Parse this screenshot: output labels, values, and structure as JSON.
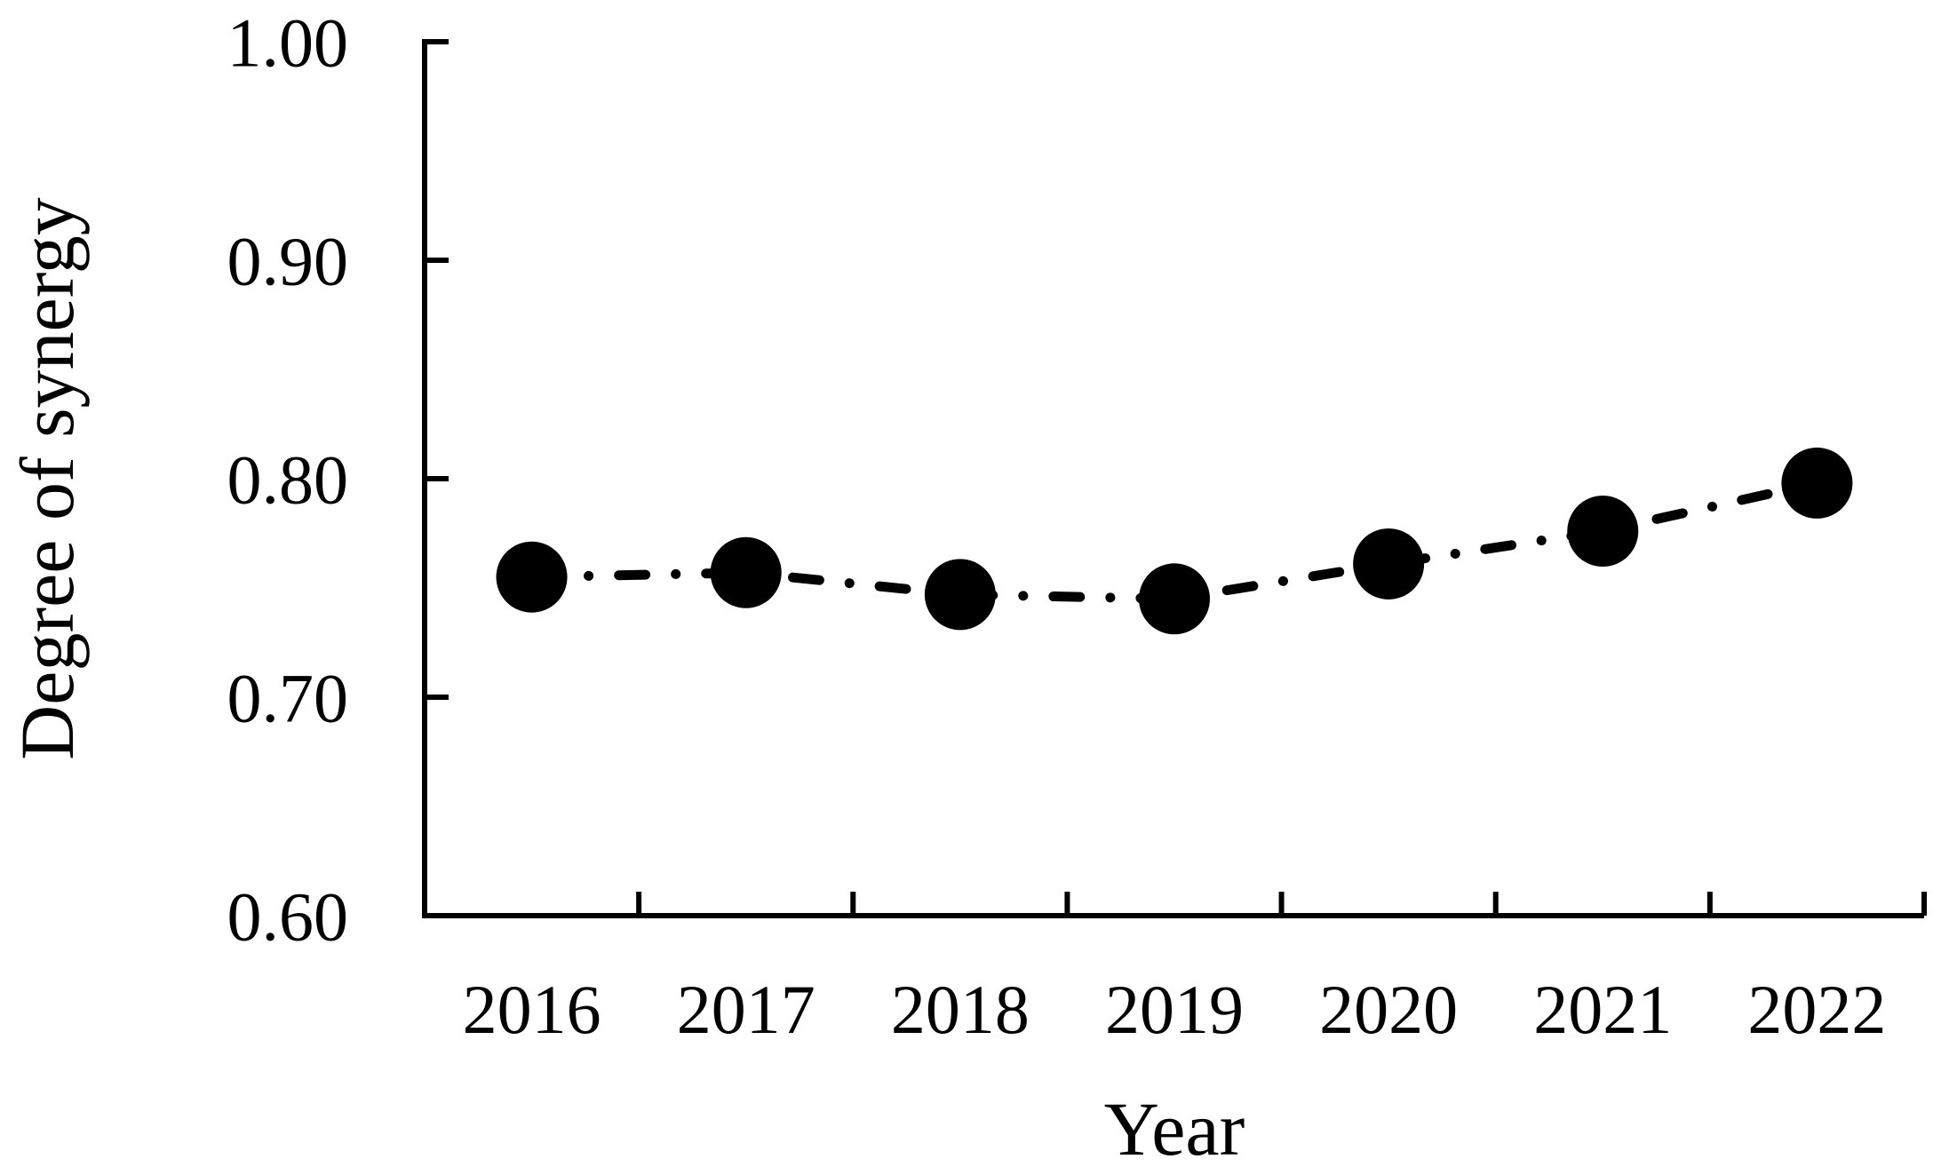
{
  "page": {
    "background_color": "#ffffff",
    "ink_color": "#000000"
  },
  "chart_data": {
    "type": "line",
    "title": "",
    "xlabel": "Year",
    "ylabel": "Degree of synergy",
    "categories": [
      "2016",
      "2017",
      "2018",
      "2019",
      "2020",
      "2021",
      "2022"
    ],
    "series": [
      {
        "name": "Degree of synergy",
        "values": [
          0.755,
          0.757,
          0.747,
          0.745,
          0.761,
          0.776,
          0.798
        ]
      }
    ],
    "ylim": [
      0.6,
      1.0
    ],
    "ytick_values": [
      1.0,
      0.9,
      0.8,
      0.7,
      0.6
    ],
    "ytick_labels": [
      "1.00",
      "0.90",
      "0.80",
      "0.70",
      "0.60"
    ],
    "grid": false,
    "legend_position": "none",
    "marker": "filled-circle",
    "marker_color": "#000000",
    "line_style": "dash-dot",
    "line_color": "#000000",
    "axis_color": "#000000"
  }
}
